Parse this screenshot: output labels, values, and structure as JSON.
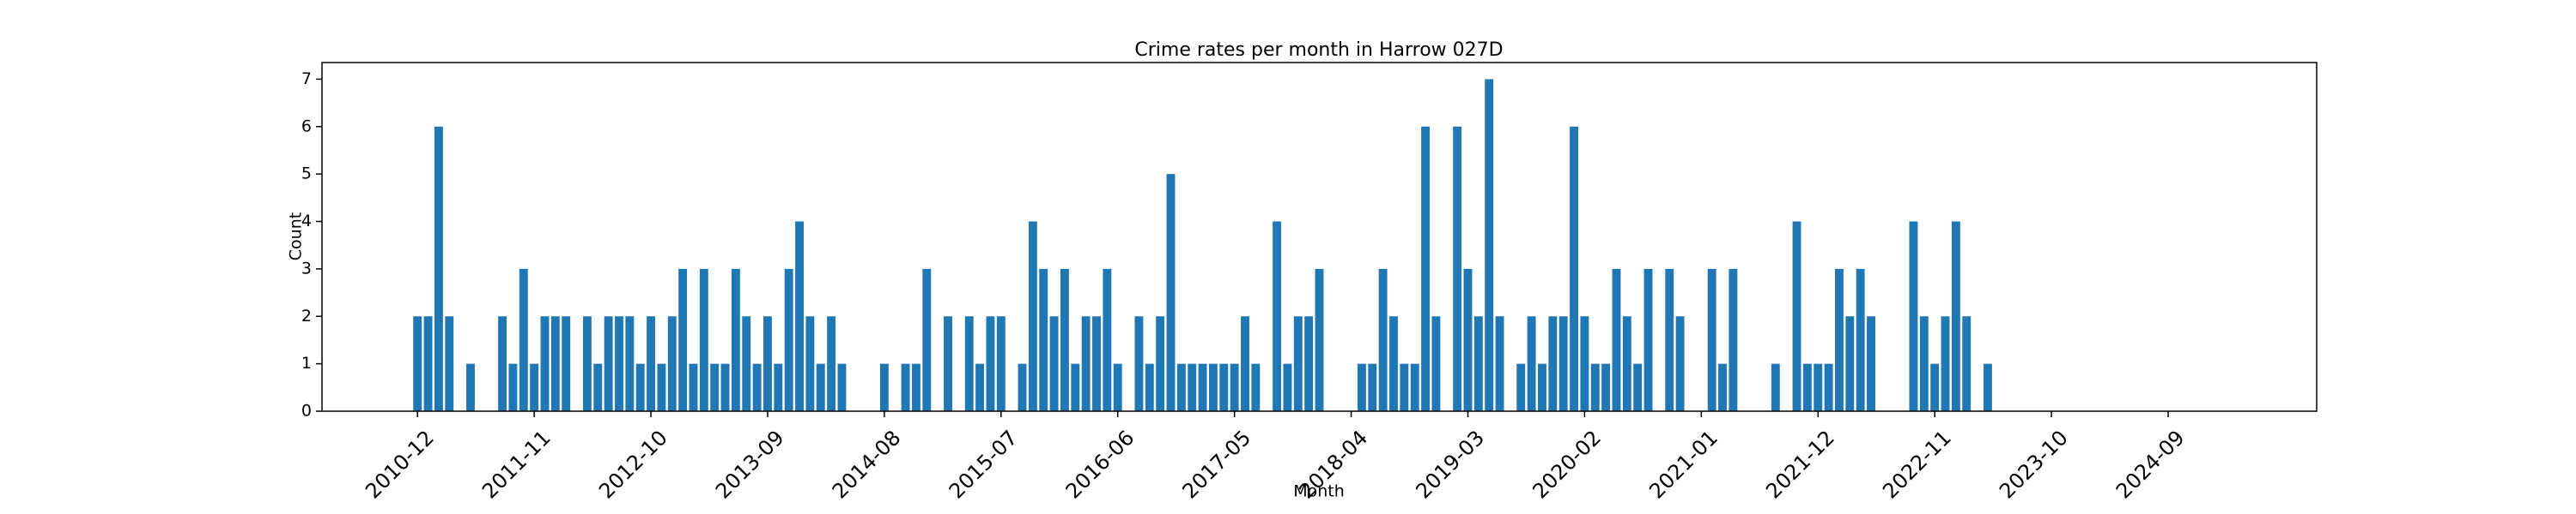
{
  "chart_data": {
    "type": "bar",
    "title": "Crime rates per month in Harrow 027D",
    "x_label": "Month",
    "y_label": "Count",
    "color": "#1f77b4",
    "x": [
      "2010-12",
      "2011-01",
      "2011-02",
      "2011-03",
      "2011-05",
      "2011-08",
      "2011-09",
      "2011-10",
      "2011-11",
      "2011-12",
      "2012-01",
      "2012-02",
      "2012-04",
      "2012-05",
      "2012-06",
      "2012-07",
      "2012-08",
      "2012-09",
      "2012-10",
      "2012-11",
      "2012-12",
      "2013-01",
      "2013-02",
      "2013-03",
      "2013-04",
      "2013-05",
      "2013-06",
      "2013-07",
      "2013-08",
      "2013-09",
      "2013-10",
      "2013-11",
      "2013-12",
      "2014-01",
      "2014-02",
      "2014-03",
      "2014-04",
      "2014-08",
      "2014-10",
      "2014-11",
      "2014-12",
      "2015-02",
      "2015-04",
      "2015-05",
      "2015-06",
      "2015-07",
      "2015-09",
      "2015-10",
      "2015-11",
      "2015-12",
      "2016-01",
      "2016-02",
      "2016-03",
      "2016-04",
      "2016-05",
      "2016-06",
      "2016-08",
      "2016-09",
      "2016-10",
      "2016-11",
      "2016-12",
      "2017-01",
      "2017-02",
      "2017-03",
      "2017-04",
      "2017-05",
      "2017-06",
      "2017-07",
      "2017-09",
      "2017-10",
      "2017-11",
      "2017-12",
      "2018-01",
      "2018-05",
      "2018-06",
      "2018-07",
      "2018-08",
      "2018-09",
      "2018-10",
      "2018-11",
      "2018-12",
      "2019-02",
      "2019-03",
      "2019-04",
      "2019-05",
      "2019-06",
      "2019-08",
      "2019-09",
      "2019-10",
      "2019-11",
      "2019-12",
      "2020-01",
      "2020-02",
      "2020-03",
      "2020-04",
      "2020-05",
      "2020-06",
      "2020-07",
      "2020-08",
      "2020-10",
      "2020-11",
      "2021-02",
      "2021-03",
      "2021-04",
      "2021-08",
      "2021-10",
      "2021-11",
      "2021-12",
      "2022-01",
      "2022-02",
      "2022-03",
      "2022-04",
      "2022-05",
      "2022-09",
      "2022-10",
      "2022-11",
      "2022-12",
      "2023-01",
      "2023-02",
      "2023-04"
    ],
    "values": [
      2,
      2,
      6,
      2,
      1,
      2,
      1,
      3,
      1,
      2,
      2,
      2,
      2,
      1,
      2,
      2,
      2,
      1,
      2,
      1,
      2,
      3,
      1,
      3,
      1,
      1,
      3,
      2,
      1,
      2,
      1,
      3,
      4,
      2,
      1,
      2,
      1,
      1,
      1,
      1,
      3,
      2,
      2,
      1,
      2,
      2,
      1,
      4,
      3,
      2,
      3,
      1,
      2,
      2,
      3,
      1,
      2,
      1,
      2,
      5,
      1,
      1,
      1,
      1,
      1,
      1,
      2,
      1,
      4,
      1,
      2,
      2,
      3,
      1,
      1,
      3,
      2,
      1,
      1,
      6,
      2,
      6,
      3,
      2,
      7,
      2,
      1,
      2,
      1,
      2,
      2,
      6,
      2,
      1,
      1,
      3,
      2,
      1,
      3,
      3,
      2,
      3,
      1,
      3,
      1,
      4,
      1,
      1,
      1,
      3,
      2,
      3,
      2,
      4,
      2,
      1,
      2,
      4,
      2,
      1
    ],
    "xlim": [
      "2010-03",
      "2025-11"
    ],
    "xticks": [
      "2010-12",
      "2011-11",
      "2012-10",
      "2013-09",
      "2014-08",
      "2015-07",
      "2016-06",
      "2017-05",
      "2018-04",
      "2019-03",
      "2020-02",
      "2021-01",
      "2021-12",
      "2022-11",
      "2023-10",
      "2024-09"
    ],
    "ylim": [
      0,
      7.35
    ],
    "yticks": [
      0,
      1,
      2,
      3,
      4,
      5,
      6,
      7
    ]
  }
}
